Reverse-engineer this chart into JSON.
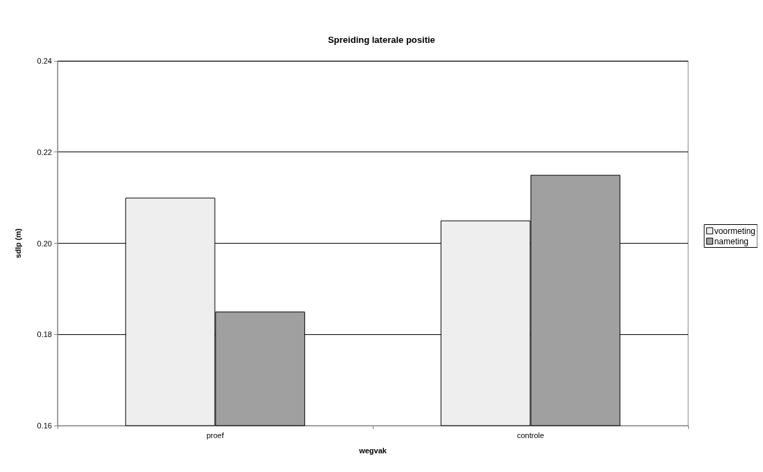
{
  "chart_data": {
    "type": "bar",
    "title": "Spreiding laterale positie",
    "xlabel": "wegvak",
    "ylabel": "sdlp (m)",
    "categories": [
      "proef",
      "controle"
    ],
    "series": [
      {
        "name": "voormeting",
        "color": "#eeeeee",
        "values": [
          0.21,
          0.205
        ]
      },
      {
        "name": "nameting",
        "color": "#a0a0a0",
        "values": [
          0.185,
          0.215
        ]
      }
    ],
    "ylim": [
      0.16,
      0.24
    ],
    "yticks": [
      {
        "value": 0.16,
        "label": "0.16"
      },
      {
        "value": 0.18,
        "label": "0.18"
      },
      {
        "value": 0.2,
        "label": "0.20"
      },
      {
        "value": 0.22,
        "label": "0.22"
      },
      {
        "value": 0.24,
        "label": "0.24"
      }
    ],
    "grid": "y",
    "legend": "right"
  }
}
